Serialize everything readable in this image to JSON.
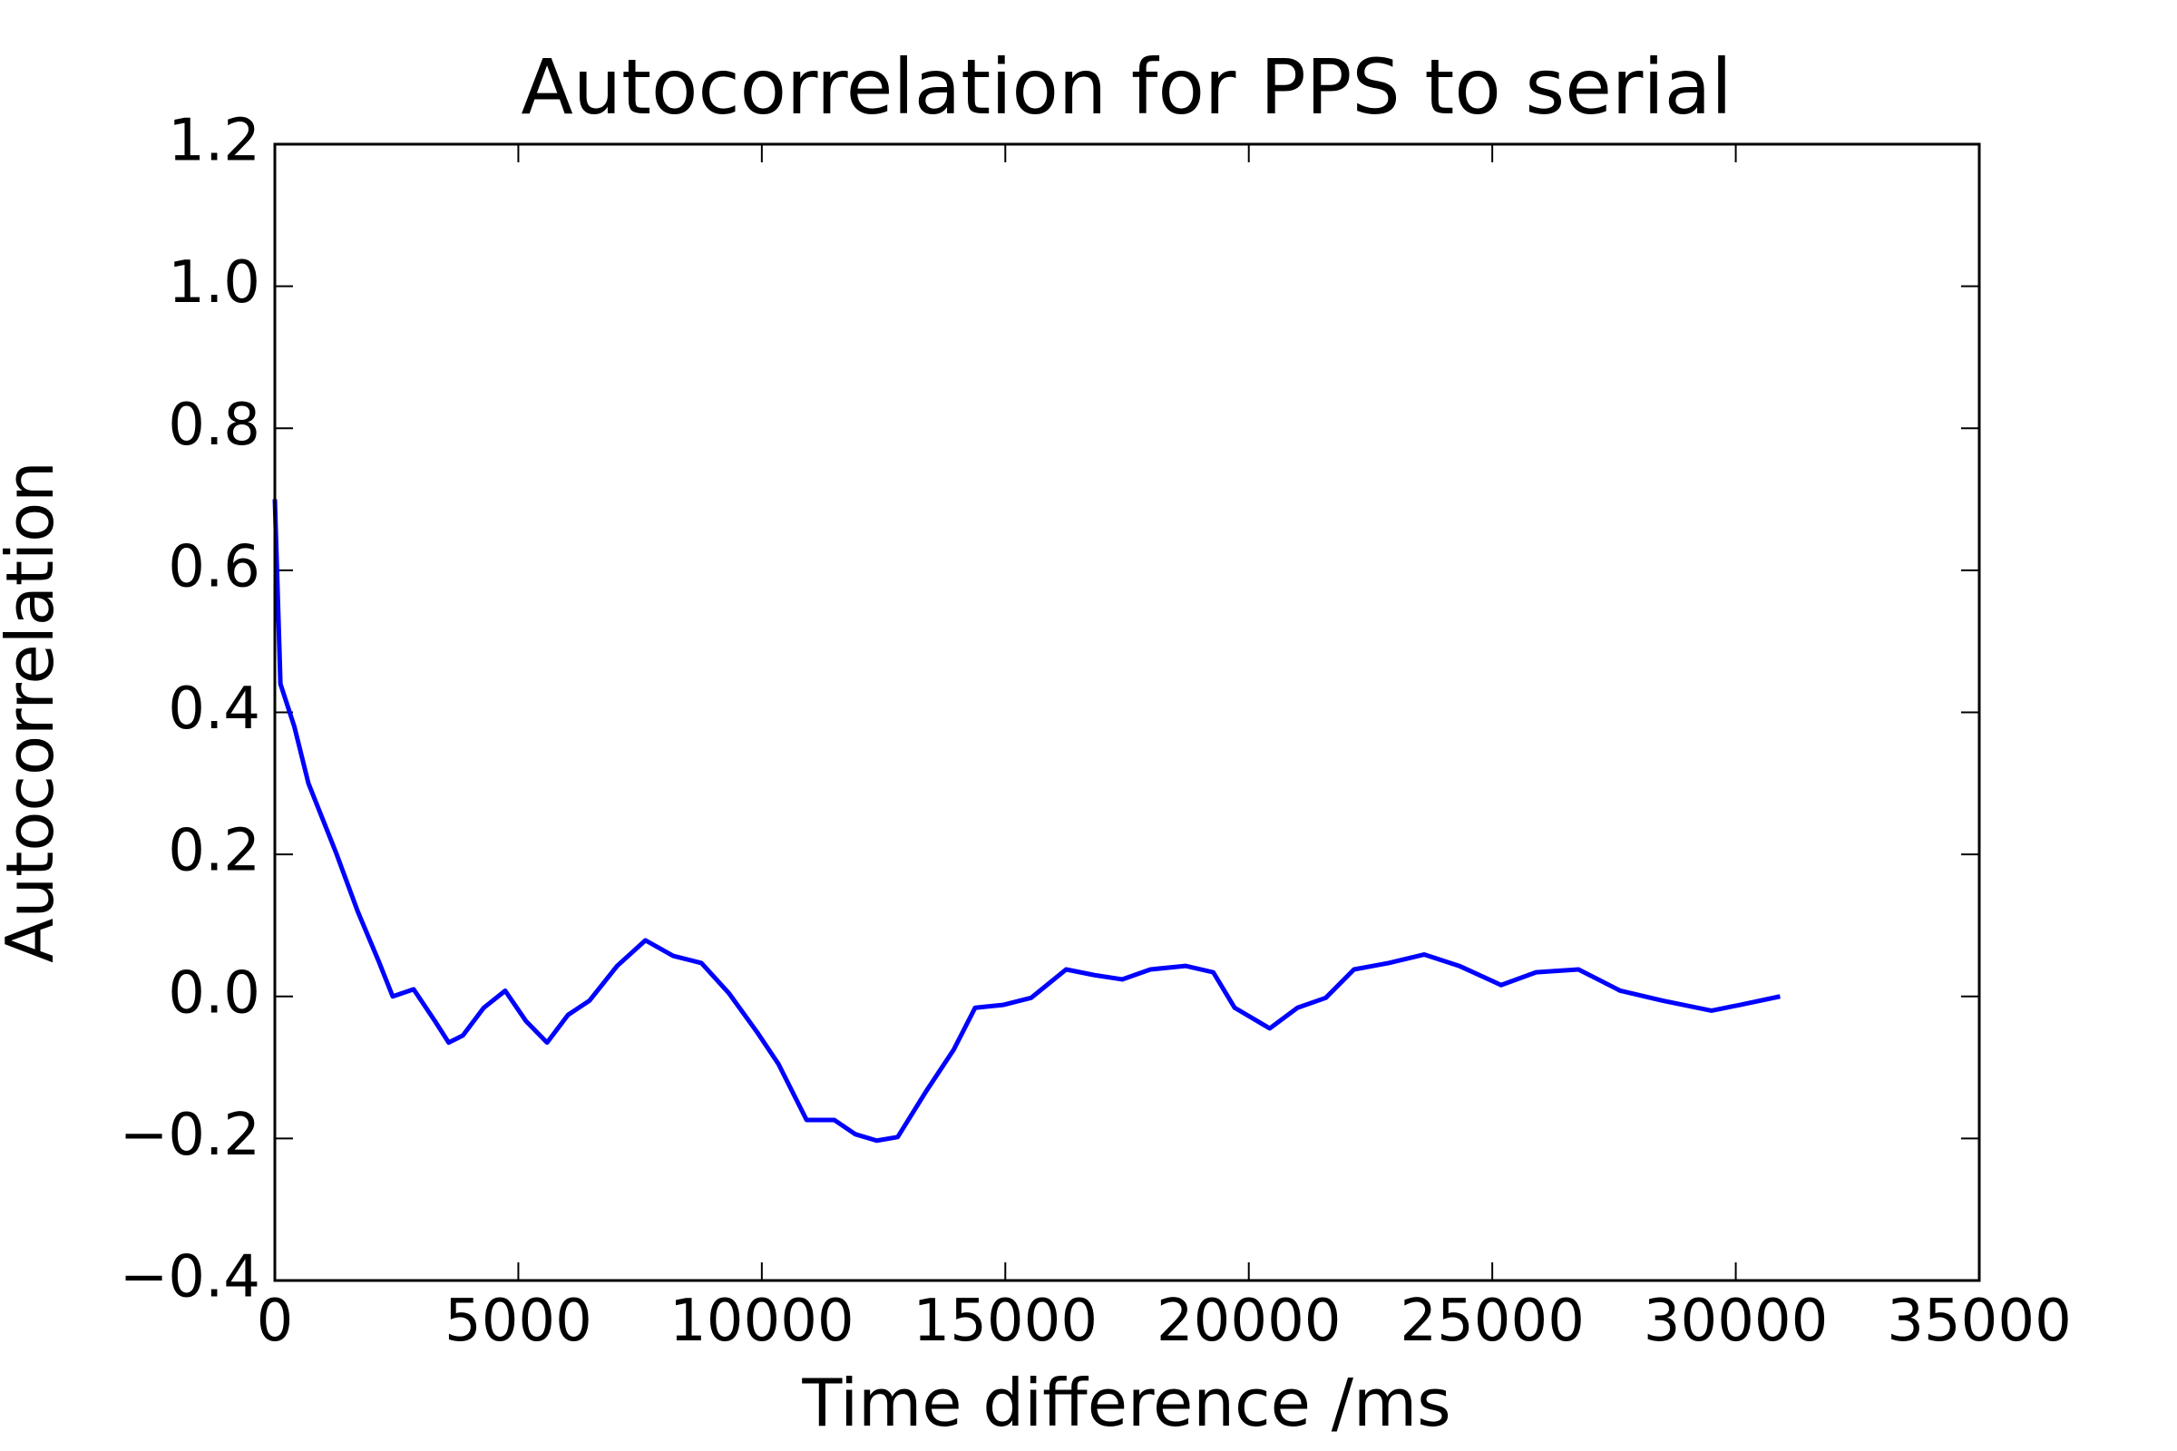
{
  "chart_data": {
    "type": "line",
    "title": "Autocorrelation for PPS to serial",
    "xlabel": "Time difference /ms",
    "ylabel": "Autocorrelation",
    "x": [
      0,
      115,
      400,
      690,
      980,
      1270,
      1700,
      2130,
      2420,
      2850,
      3290,
      3570,
      3860,
      4290,
      4730,
      5160,
      5590,
      6020,
      6460,
      7030,
      7610,
      8180,
      8760,
      9330,
      9910,
      10340,
      10920,
      11490,
      11920,
      12360,
      12790,
      13370,
      13940,
      14380,
      14950,
      15530,
      16250,
      16830,
      17400,
      17980,
      18700,
      19270,
      19710,
      20430,
      21000,
      21580,
      22160,
      22870,
      23600,
      24320,
      25180,
      25900,
      26770,
      27630,
      28500,
      29500,
      30080,
      30910
    ],
    "series": [
      {
        "name": "Autocorrelation",
        "color": "#0000ff",
        "values": [
          0.7,
          0.44,
          0.38,
          0.3,
          0.25,
          0.2,
          0.12,
          0.05,
          0.0,
          0.01,
          -0.035,
          -0.065,
          -0.055,
          -0.016,
          0.008,
          -0.035,
          -0.065,
          -0.026,
          -0.006,
          0.043,
          0.079,
          0.057,
          0.047,
          0.004,
          -0.051,
          -0.095,
          -0.174,
          -0.174,
          -0.194,
          -0.203,
          -0.198,
          -0.134,
          -0.075,
          -0.016,
          -0.012,
          -0.002,
          0.038,
          0.03,
          0.024,
          0.038,
          0.043,
          0.034,
          -0.016,
          -0.045,
          -0.016,
          -0.002,
          0.038,
          0.047,
          0.059,
          0.043,
          0.016,
          0.034,
          0.038,
          0.008,
          -0.006,
          -0.02,
          -0.012,
          0.0
        ]
      }
    ],
    "xlim": [
      0,
      35000
    ],
    "xticks": [
      0,
      5000,
      10000,
      15000,
      20000,
      25000,
      30000,
      35000
    ],
    "ylim": [
      -0.4,
      1.2
    ],
    "yticks": [
      {
        "value": -0.4,
        "label": "−0.4"
      },
      {
        "value": -0.2,
        "label": "−0.2"
      },
      {
        "value": 0,
        "label": "0.0"
      },
      0.2,
      0.4,
      0.6,
      0.8,
      {
        "value": 1,
        "label": "1.0"
      },
      1.2
    ],
    "grid": false
  }
}
